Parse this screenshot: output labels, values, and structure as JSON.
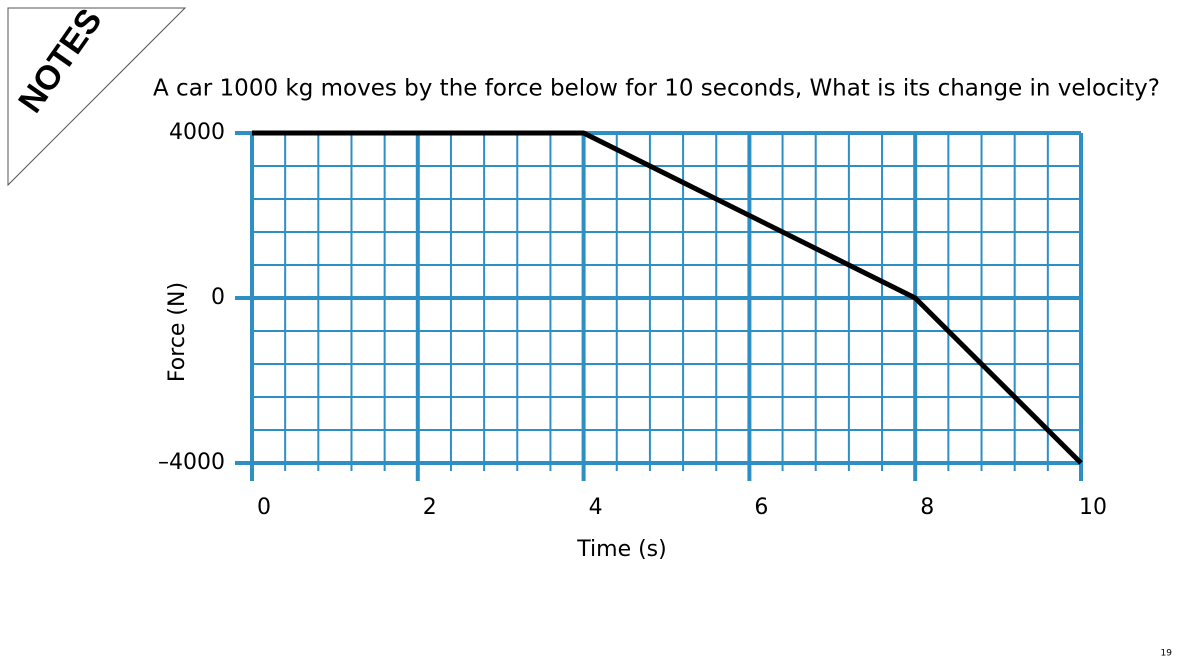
{
  "corner_label": "NOTES",
  "slide_number": "19",
  "chart_data": {
    "type": "line",
    "title": "A car 1000 kg moves by the force below for 10 seconds, What is its change in velocity?",
    "x_label": "Time (s)",
    "y_label": "Force (N)",
    "x": [
      0,
      4,
      8,
      10
    ],
    "series": [
      {
        "color": "#000000",
        "values": [
          4000,
          4000,
          0,
          -4000
        ]
      }
    ],
    "xlim": [
      0,
      10
    ],
    "xticks": [
      0,
      2,
      4,
      6,
      8,
      10
    ],
    "ylim": [
      -4000,
      4000
    ],
    "yticks": [
      {
        "value": -4000,
        "label": "–4000"
      },
      0,
      4000
    ],
    "grid": true,
    "grid_color": "#2e8fc4"
  }
}
